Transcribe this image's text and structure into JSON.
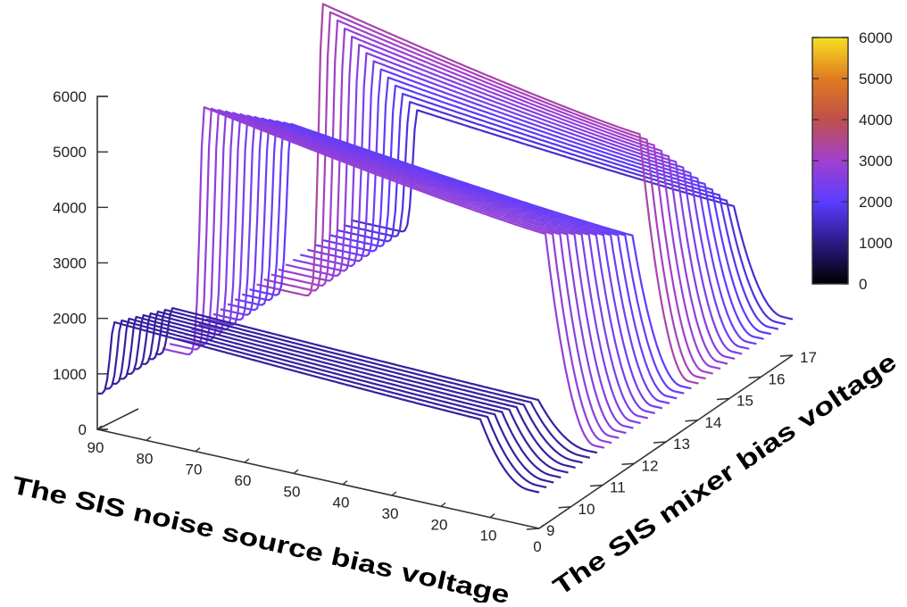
{
  "chart_data": {
    "type": "line",
    "style": "3d-waterfall",
    "x_axis": {
      "label": "The SIS noise source bias voltage",
      "ticks": [
        "90",
        "80",
        "70",
        "60",
        "50",
        "40",
        "30",
        "20",
        "10",
        "0"
      ],
      "range": [
        0,
        90
      ]
    },
    "y_axis": {
      "label": "The SIS mixer bias voltage",
      "ticks": [
        "9",
        "10",
        "11",
        "12",
        "13",
        "14",
        "15",
        "16",
        "17"
      ],
      "range": [
        9,
        17
      ]
    },
    "z_axis": {
      "label": "",
      "ticks": [
        "0",
        "1000",
        "2000",
        "3000",
        "4000",
        "5000",
        "6000"
      ],
      "range": [
        0,
        6000
      ]
    },
    "colorbar": {
      "ticks": [
        "0",
        "1000",
        "2000",
        "3000",
        "4000",
        "5000",
        "6000"
      ],
      "range": [
        0,
        6000
      ],
      "colors": [
        "#000000",
        "#2d1a88",
        "#5a3cff",
        "#a040d0",
        "#c0504a",
        "#e07a20",
        "#f5e020"
      ]
    },
    "groups": [
      {
        "name": "",
        "mixer_bias_range": [
          9,
          11
        ],
        "noise_source_bias_range": [
          0,
          90
        ],
        "peak_value": 2000
      },
      {
        "name": "",
        "mixer_bias_range": [
          11,
          14
        ],
        "noise_source_bias_range": [
          0,
          90
        ],
        "peak_value": 5200
      },
      {
        "name": "",
        "mixer_bias_range": [
          14,
          17
        ],
        "noise_source_bias_range": [
          0,
          90
        ],
        "peak_value": 6000
      }
    ],
    "grid": false,
    "legend": "colorbar-top-right"
  }
}
